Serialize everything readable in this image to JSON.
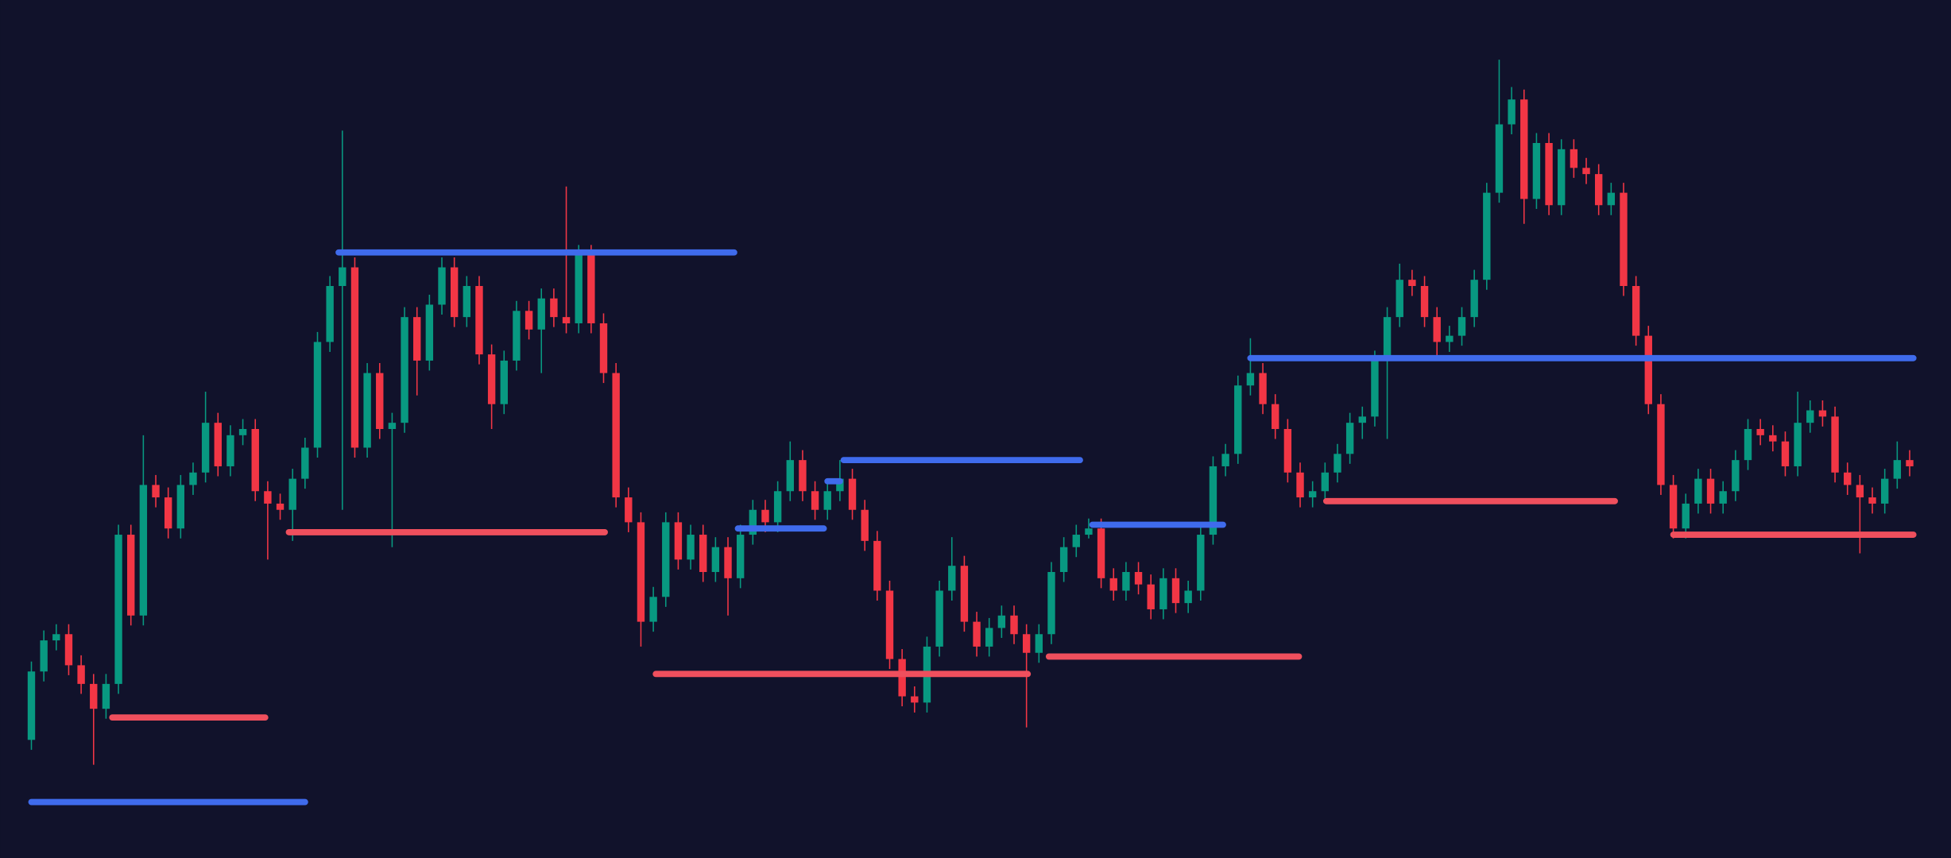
{
  "chart_data": {
    "type": "candlestick",
    "ylim": [
      0,
      690
    ],
    "up_color": "#089981",
    "down_color": "#f23645",
    "open": [
      95,
      150,
      175,
      180,
      155,
      140,
      120,
      140,
      260,
      195,
      300,
      290,
      265,
      300,
      310,
      350,
      315,
      340,
      345,
      295,
      285,
      280,
      305,
      330,
      415,
      460,
      475,
      330,
      390,
      345,
      350,
      435,
      400,
      445,
      475,
      435,
      460,
      405,
      365,
      400,
      440,
      425,
      450,
      435,
      430,
      485,
      430,
      390,
      290,
      270,
      190,
      210,
      270,
      240,
      260,
      230,
      250,
      225,
      260,
      280,
      270,
      295,
      320,
      295,
      280,
      295,
      305,
      280,
      255,
      215,
      160,
      130,
      125,
      170,
      215,
      235,
      190,
      170,
      185,
      195,
      180,
      165,
      180,
      230,
      250,
      260,
      265,
      225,
      215,
      230,
      220,
      200,
      225,
      205,
      215,
      260,
      315,
      325,
      380,
      390,
      365,
      345,
      310,
      290,
      295,
      310,
      325,
      350,
      355,
      400,
      435,
      465,
      460,
      435,
      415,
      420,
      435,
      465,
      535,
      590,
      610,
      530,
      575,
      525,
      570,
      555,
      550,
      525,
      535,
      460,
      420,
      365,
      300,
      265,
      285,
      305,
      285,
      295,
      320,
      345,
      340,
      335,
      315,
      350,
      360,
      355,
      310,
      300,
      290,
      285,
      305,
      320
    ],
    "high": [
      158,
      183,
      188,
      188,
      163,
      148,
      148,
      268,
      268,
      340,
      308,
      298,
      308,
      318,
      375,
      358,
      348,
      353,
      353,
      303,
      293,
      313,
      338,
      423,
      468,
      585,
      483,
      398,
      398,
      358,
      443,
      443,
      453,
      483,
      483,
      468,
      468,
      413,
      408,
      448,
      448,
      458,
      458,
      540,
      493,
      493,
      438,
      398,
      298,
      278,
      218,
      278,
      278,
      268,
      268,
      258,
      258,
      268,
      288,
      288,
      303,
      335,
      328,
      303,
      303,
      320,
      313,
      288,
      263,
      223,
      168,
      138,
      178,
      223,
      258,
      243,
      198,
      193,
      203,
      203,
      188,
      188,
      238,
      258,
      268,
      273,
      273,
      233,
      238,
      238,
      228,
      233,
      233,
      223,
      268,
      323,
      333,
      388,
      418,
      398,
      373,
      353,
      318,
      303,
      318,
      333,
      358,
      363,
      408,
      443,
      478,
      473,
      468,
      443,
      428,
      443,
      473,
      543,
      642,
      620,
      618,
      583,
      583,
      578,
      578,
      563,
      558,
      543,
      543,
      468,
      428,
      373,
      308,
      293,
      313,
      313,
      303,
      328,
      353,
      353,
      348,
      343,
      375,
      368,
      368,
      363,
      318,
      308,
      298,
      313,
      335,
      328
    ],
    "low": [
      87,
      142,
      167,
      147,
      132,
      75,
      112,
      132,
      187,
      187,
      282,
      257,
      257,
      292,
      302,
      307,
      307,
      332,
      287,
      240,
      272,
      255,
      297,
      322,
      407,
      280,
      322,
      322,
      337,
      250,
      342,
      372,
      392,
      437,
      427,
      427,
      397,
      345,
      357,
      392,
      417,
      390,
      427,
      422,
      422,
      422,
      382,
      282,
      262,
      170,
      182,
      202,
      232,
      232,
      222,
      222,
      195,
      217,
      252,
      262,
      262,
      287,
      287,
      272,
      272,
      287,
      272,
      247,
      207,
      152,
      122,
      117,
      117,
      162,
      207,
      182,
      162,
      162,
      177,
      172,
      105,
      157,
      172,
      222,
      242,
      257,
      217,
      207,
      207,
      212,
      192,
      192,
      197,
      197,
      207,
      252,
      307,
      317,
      372,
      357,
      337,
      302,
      282,
      282,
      287,
      302,
      317,
      337,
      347,
      337,
      427,
      452,
      427,
      400,
      407,
      412,
      427,
      457,
      527,
      582,
      510,
      522,
      517,
      517,
      547,
      542,
      517,
      517,
      452,
      412,
      357,
      292,
      257,
      257,
      277,
      277,
      277,
      287,
      312,
      332,
      327,
      307,
      307,
      342,
      347,
      302,
      292,
      245,
      277,
      277,
      297,
      307
    ],
    "close": [
      150,
      175,
      180,
      155,
      140,
      120,
      140,
      260,
      195,
      300,
      290,
      265,
      300,
      310,
      350,
      315,
      340,
      345,
      295,
      285,
      280,
      305,
      330,
      415,
      460,
      475,
      330,
      390,
      345,
      350,
      435,
      400,
      445,
      475,
      435,
      460,
      405,
      365,
      400,
      440,
      425,
      450,
      435,
      430,
      485,
      430,
      390,
      290,
      270,
      190,
      210,
      270,
      240,
      260,
      230,
      250,
      225,
      260,
      280,
      270,
      295,
      320,
      295,
      280,
      295,
      305,
      280,
      255,
      215,
      160,
      130,
      125,
      170,
      215,
      235,
      190,
      170,
      185,
      195,
      180,
      165,
      180,
      230,
      250,
      260,
      265,
      225,
      215,
      230,
      220,
      200,
      225,
      205,
      215,
      260,
      315,
      325,
      380,
      390,
      365,
      345,
      310,
      290,
      295,
      310,
      325,
      350,
      355,
      400,
      435,
      465,
      460,
      435,
      415,
      420,
      435,
      465,
      535,
      590,
      610,
      530,
      575,
      525,
      570,
      555,
      550,
      525,
      535,
      460,
      420,
      365,
      300,
      265,
      285,
      305,
      285,
      295,
      320,
      345,
      340,
      335,
      315,
      350,
      360,
      355,
      310,
      300,
      290,
      285,
      305,
      320,
      315
    ],
    "levels": [
      {
        "color": "#3f6bec",
        "value": 45,
        "start": 0,
        "end": 22
      },
      {
        "color": "#3f6bec",
        "value": 487,
        "start": 24.7,
        "end": 56.5
      },
      {
        "color": "#3f6bec",
        "value": 265,
        "start": 56.8,
        "end": 63.7
      },
      {
        "color": "#3f6bec",
        "value": 303,
        "start": 64,
        "end": 65
      },
      {
        "color": "#3f6bec",
        "value": 320,
        "start": 65.3,
        "end": 84.3
      },
      {
        "color": "#3f6bec",
        "value": 268,
        "start": 85.3,
        "end": 95.8
      },
      {
        "color": "#3f6bec",
        "value": 402,
        "start": 98,
        "end": 151.3
      },
      {
        "color": "#ef4f5d",
        "value": 113,
        "start": 6.5,
        "end": 18.8
      },
      {
        "color": "#ef4f5d",
        "value": 262,
        "start": 20.7,
        "end": 46.1
      },
      {
        "color": "#ef4f5d",
        "value": 148,
        "start": 50.2,
        "end": 80.1
      },
      {
        "color": "#ef4f5d",
        "value": 162,
        "start": 81.8,
        "end": 101.9
      },
      {
        "color": "#ef4f5d",
        "value": 287,
        "start": 104.1,
        "end": 127.3
      },
      {
        "color": "#ef4f5d",
        "value": 260,
        "start": 132,
        "end": 151.3
      }
    ]
  }
}
